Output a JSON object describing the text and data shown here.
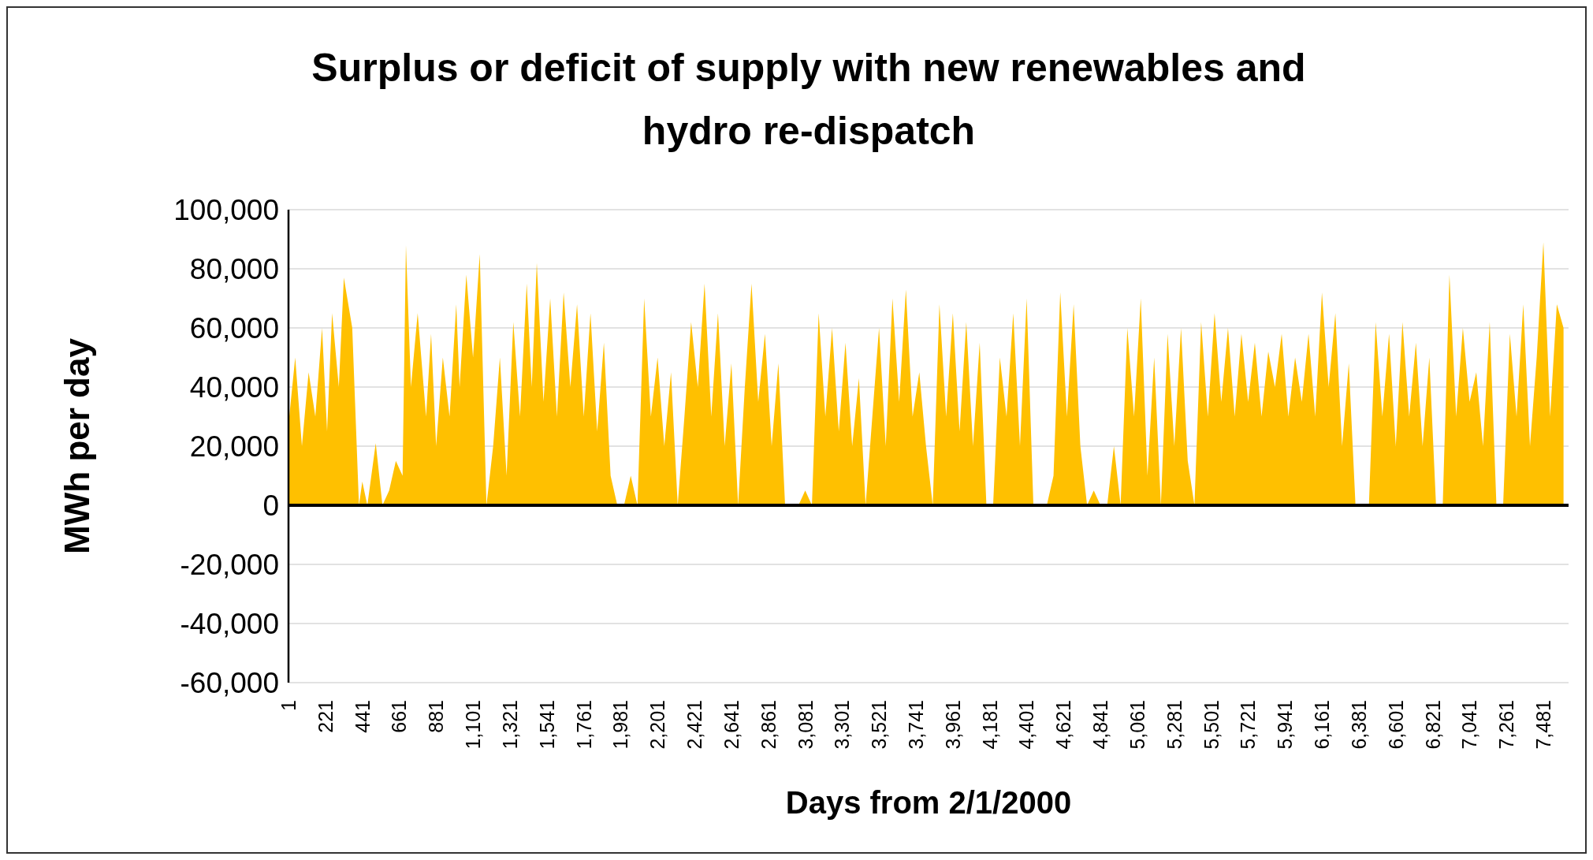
{
  "chart_data": {
    "type": "area",
    "title": "Surplus or deficit of supply with new renewables and\nhydro re-dispatch",
    "xlabel": "Days from 2/1/2000",
    "ylabel": "MWh per day",
    "x": [
      1,
      40,
      80,
      120,
      160,
      200,
      230,
      260,
      300,
      330,
      380,
      420,
      440,
      470,
      520,
      560,
      600,
      640,
      680,
      700,
      730,
      770,
      820,
      850,
      880,
      920,
      960,
      1000,
      1020,
      1060,
      1100,
      1140,
      1180,
      1220,
      1260,
      1300,
      1340,
      1380,
      1420,
      1450,
      1480,
      1520,
      1560,
      1600,
      1640,
      1680,
      1720,
      1760,
      1800,
      1840,
      1880,
      1920,
      1960,
      2000,
      2040,
      2080,
      2120,
      2160,
      2200,
      2240,
      2280,
      2320,
      2360,
      2400,
      2440,
      2480,
      2520,
      2560,
      2600,
      2640,
      2680,
      2720,
      2760,
      2800,
      2840,
      2880,
      2920,
      2960,
      3000,
      3040,
      3080,
      3120,
      3160,
      3200,
      3240,
      3280,
      3320,
      3360,
      3400,
      3440,
      3480,
      3520,
      3560,
      3600,
      3640,
      3680,
      3720,
      3760,
      3800,
      3840,
      3880,
      3920,
      3960,
      4000,
      4040,
      4080,
      4120,
      4160,
      4200,
      4240,
      4280,
      4320,
      4360,
      4400,
      4440,
      4480,
      4520,
      4560,
      4600,
      4640,
      4680,
      4720,
      4760,
      4800,
      4840,
      4880,
      4920,
      4960,
      5000,
      5040,
      5080,
      5120,
      5160,
      5200,
      5240,
      5280,
      5320,
      5360,
      5400,
      5440,
      5480,
      5520,
      5560,
      5600,
      5640,
      5680,
      5720,
      5760,
      5800,
      5840,
      5880,
      5920,
      5960,
      6000,
      6040,
      6080,
      6120,
      6160,
      6200,
      6240,
      6280,
      6320,
      6360,
      6400,
      6440,
      6480,
      6520,
      6560,
      6600,
      6640,
      6680,
      6720,
      6760,
      6800,
      6840,
      6880,
      6920,
      6960,
      7000,
      7040,
      7080,
      7120,
      7160,
      7200,
      7240,
      7280,
      7320,
      7360,
      7400,
      7440,
      7480,
      7520,
      7560,
      7600
    ],
    "series": [
      {
        "color": "#ffc000",
        "values": [
          28000,
          50000,
          20000,
          45000,
          30000,
          60000,
          25000,
          65000,
          40000,
          77000,
          60000,
          0,
          8000,
          0,
          21000,
          0,
          5000,
          15000,
          10000,
          88000,
          40000,
          65000,
          30000,
          58000,
          20000,
          50000,
          30000,
          68000,
          40000,
          78000,
          50000,
          85000,
          0,
          20000,
          50000,
          10000,
          62000,
          30000,
          75000,
          40000,
          82000,
          35000,
          70000,
          30000,
          72000,
          40000,
          68000,
          30000,
          65000,
          25000,
          55000,
          10000,
          0,
          0,
          10000,
          0,
          70000,
          30000,
          50000,
          20000,
          45000,
          0,
          30000,
          62000,
          40000,
          75000,
          30000,
          65000,
          20000,
          48000,
          0,
          40000,
          75000,
          35000,
          58000,
          20000,
          48000,
          0,
          0,
          0,
          5000,
          0,
          65000,
          30000,
          60000,
          25000,
          55000,
          20000,
          43000,
          0,
          30000,
          60000,
          20000,
          70000,
          35000,
          73000,
          30000,
          45000,
          20000,
          0,
          68000,
          30000,
          65000,
          25000,
          62000,
          20000,
          55000,
          0,
          0,
          50000,
          30000,
          65000,
          20000,
          70000,
          0,
          0,
          0,
          10000,
          72000,
          30000,
          68000,
          20000,
          0,
          5000,
          0,
          0,
          20000,
          0,
          60000,
          30000,
          70000,
          10000,
          50000,
          0,
          58000,
          20000,
          60000,
          15000,
          0,
          62000,
          30000,
          65000,
          35000,
          60000,
          30000,
          58000,
          35000,
          55000,
          30000,
          52000,
          40000,
          58000,
          30000,
          50000,
          35000,
          58000,
          30000,
          72000,
          40000,
          65000,
          20000,
          48000,
          0,
          0,
          0,
          62000,
          30000,
          58000,
          20000,
          62000,
          30000,
          55000,
          20000,
          50000,
          0,
          0,
          78000,
          30000,
          60000,
          35000,
          45000,
          20000,
          62000,
          0,
          0,
          58000,
          30000,
          68000,
          20000,
          50000,
          89000,
          30000,
          68000,
          60000
        ]
      }
    ],
    "xlim": [
      0,
      7630
    ],
    "xticks": [
      1,
      221,
      441,
      661,
      881,
      {
        "value": 1101,
        "label": "1,101"
      },
      {
        "value": 1321,
        "label": "1,321"
      },
      {
        "value": 1541,
        "label": "1,541"
      },
      {
        "value": 1761,
        "label": "1,761"
      },
      {
        "value": 1981,
        "label": "1,981"
      },
      {
        "value": 2201,
        "label": "2,201"
      },
      {
        "value": 2421,
        "label": "2,421"
      },
      {
        "value": 2641,
        "label": "2,641"
      },
      {
        "value": 2861,
        "label": "2,861"
      },
      {
        "value": 3081,
        "label": "3,081"
      },
      {
        "value": 3301,
        "label": "3,301"
      },
      {
        "value": 3521,
        "label": "3,521"
      },
      {
        "value": 3741,
        "label": "3,741"
      },
      {
        "value": 3961,
        "label": "3,961"
      },
      {
        "value": 4181,
        "label": "4,181"
      },
      {
        "value": 4401,
        "label": "4,401"
      },
      {
        "value": 4621,
        "label": "4,621"
      },
      {
        "value": 4841,
        "label": "4,841"
      },
      {
        "value": 5061,
        "label": "5,061"
      },
      {
        "value": 5281,
        "label": "5,281"
      },
      {
        "value": 5501,
        "label": "5,501"
      },
      {
        "value": 5721,
        "label": "5,721"
      },
      {
        "value": 5941,
        "label": "5,941"
      },
      {
        "value": 6161,
        "label": "6,161"
      },
      {
        "value": 6381,
        "label": "6,381"
      },
      {
        "value": 6601,
        "label": "6,601"
      },
      {
        "value": 6821,
        "label": "6,821"
      },
      {
        "value": 7041,
        "label": "7,041"
      },
      {
        "value": 7261,
        "label": "7,261"
      },
      {
        "value": 7481,
        "label": "7,481"
      }
    ],
    "ylim": [
      -60000,
      100000
    ],
    "yticks": [
      {
        "value": -60000,
        "label": "-60,000"
      },
      {
        "value": -40000,
        "label": "-40,000"
      },
      {
        "value": -20000,
        "label": "-20,000"
      },
      0,
      {
        "value": 20000,
        "label": "20,000"
      },
      {
        "value": 40000,
        "label": "40,000"
      },
      {
        "value": 60000,
        "label": "60,000"
      },
      {
        "value": 80000,
        "label": "80,000"
      },
      {
        "value": 100000,
        "label": "100,000"
      }
    ],
    "grid": "y"
  }
}
